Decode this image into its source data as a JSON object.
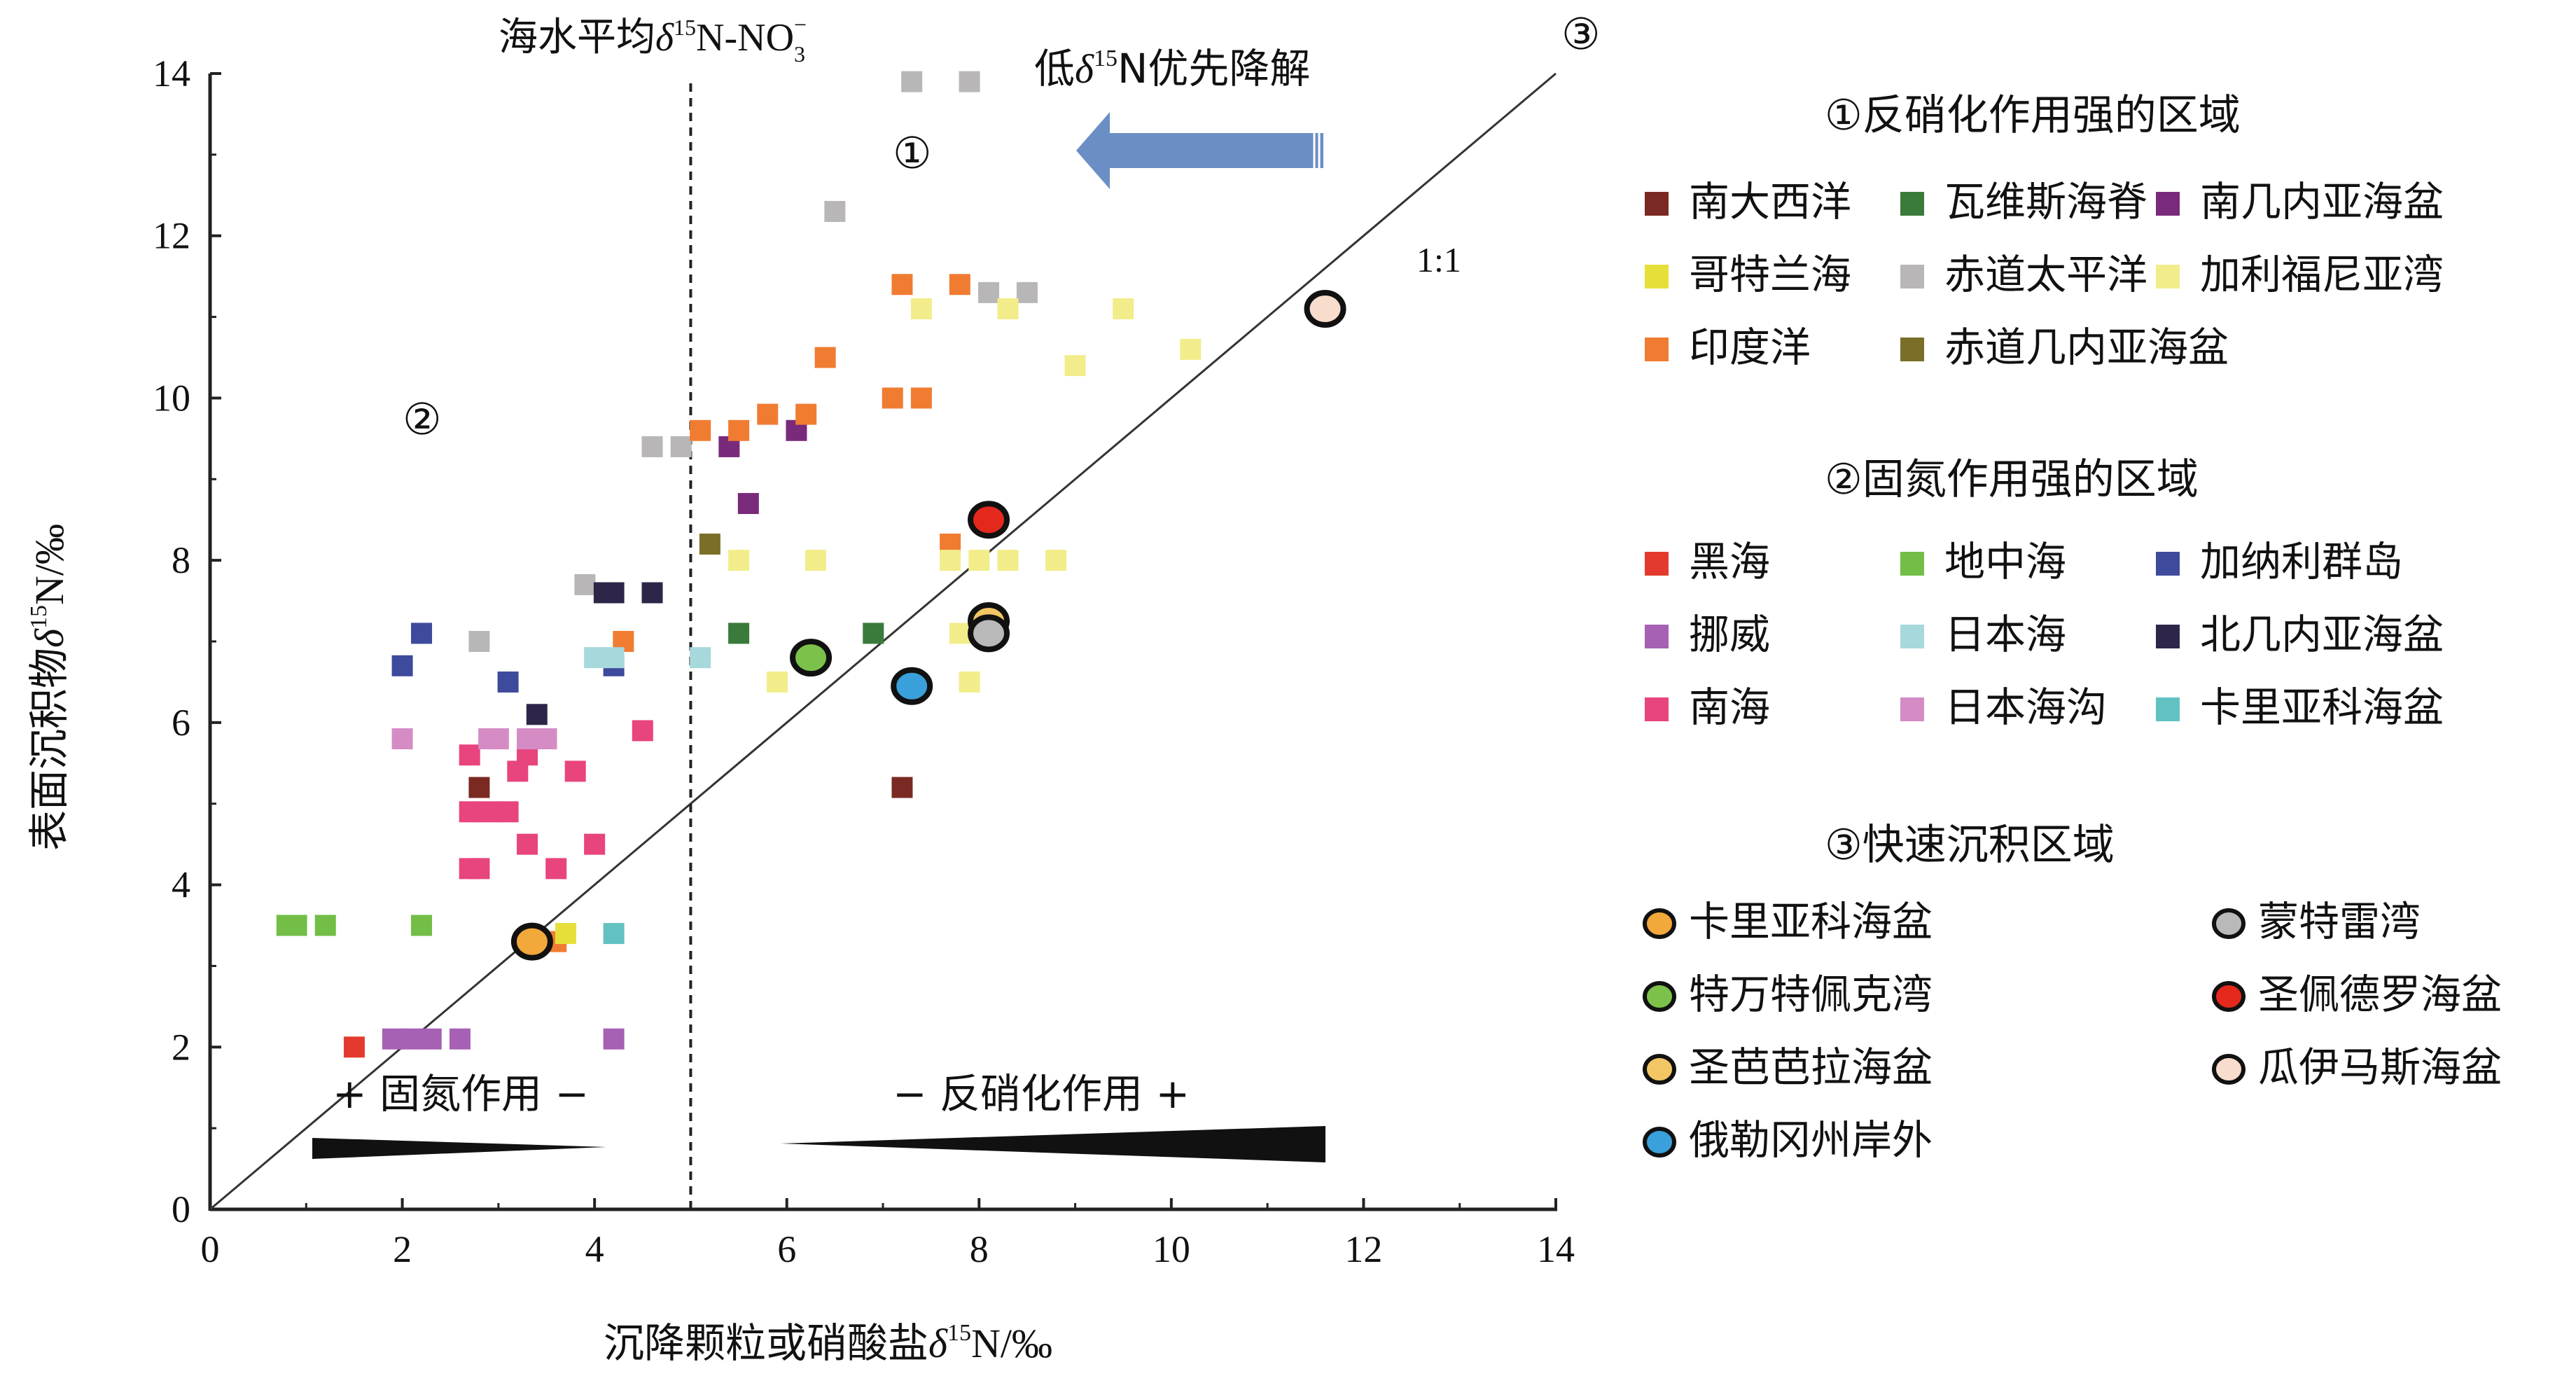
{
  "chart_data": {
    "type": "scatter",
    "xlabel_prefix": "沉降颗粒或硝酸盐",
    "xlabel_unit": "N/‰",
    "ylabel_prefix": "表面沉积物",
    "ylabel_unit": "N/‰",
    "delta": "δ",
    "sup15": "15",
    "xlim": [
      0,
      14
    ],
    "ylim": [
      0,
      14
    ],
    "x_ticks": [
      0,
      2,
      4,
      6,
      8,
      10,
      12,
      14
    ],
    "y_ticks": [
      0,
      2,
      4,
      6,
      8,
      10,
      12,
      14
    ],
    "grid": false,
    "reference_line": {
      "label": "1:1",
      "from": [
        0,
        0
      ],
      "to": [
        14,
        14
      ]
    },
    "vline": {
      "x": 5.0,
      "label_prefix": "海水平均",
      "label_suffix": "N-NO",
      "sub": "3",
      "supminus": "−"
    },
    "arrow_label_prefix": "低",
    "arrow_label_suffix": "N优先降解",
    "arrow_color": "#6b8fc4",
    "region_marks": [
      "①",
      "②",
      "③"
    ],
    "wedge_left_label": "+ 固氮作用 −",
    "wedge_right_label": "− 反硝化作用 +",
    "legend": {
      "group1_title": "①反硝化作用强的区域",
      "group1": [
        {
          "name": "南大西洋",
          "color": "#7a2a22"
        },
        {
          "name": "瓦维斯海脊",
          "color": "#3a7a3a"
        },
        {
          "name": "南几内亚海盆",
          "color": "#7a2a7a"
        },
        {
          "name": "哥特兰海",
          "color": "#e6df3a"
        },
        {
          "name": "赤道太平洋",
          "color": "#b8b6b6"
        },
        {
          "name": "加利福尼亚湾",
          "color": "#f2ed8a"
        },
        {
          "name": "印度洋",
          "color": "#f07c32"
        },
        {
          "name": "赤道几内亚海盆",
          "color": "#7a6e28"
        }
      ],
      "group2_title": "②固氮作用强的区域",
      "group2": [
        {
          "name": "黑海",
          "color": "#e43a2e"
        },
        {
          "name": "地中海",
          "color": "#72be46"
        },
        {
          "name": "加纳利群岛",
          "color": "#3e4a9c"
        },
        {
          "name": "挪威",
          "color": "#a661b4"
        },
        {
          "name": "日本海",
          "color": "#a6d8dc"
        },
        {
          "name": "北几内亚海盆",
          "color": "#2e2648"
        },
        {
          "name": "南海",
          "color": "#e8447e"
        },
        {
          "name": "日本海沟",
          "color": "#d58cc4"
        },
        {
          "name": "卡里亚科海盆",
          "color": "#62c2c2"
        }
      ],
      "group3_title": "③快速沉积区域",
      "group3": [
        {
          "name": "卡里亚科海盆",
          "color": "#f2a83a"
        },
        {
          "name": "蒙特雷湾",
          "color": "#b9b9b9"
        },
        {
          "name": "特万特佩克湾",
          "color": "#7cc24a"
        },
        {
          "name": "圣佩德罗海盆",
          "color": "#e4281c"
        },
        {
          "name": "圣芭芭拉海盆",
          "color": "#f2c664"
        },
        {
          "name": "瓜伊马斯海盆",
          "color": "#f8dccc"
        },
        {
          "name": "俄勒冈州岸外",
          "color": "#3aa0dc"
        }
      ]
    },
    "squares": [
      {
        "x": 7.2,
        "y": 5.2,
        "c": "#7a2a22"
      },
      {
        "x": 2.8,
        "y": 5.2,
        "c": "#7a2a22"
      },
      {
        "x": 5.5,
        "y": 7.1,
        "c": "#3a7a3a"
      },
      {
        "x": 6.9,
        "y": 7.1,
        "c": "#3a7a3a"
      },
      {
        "x": 5.4,
        "y": 9.4,
        "c": "#7a2a7a"
      },
      {
        "x": 5.6,
        "y": 8.7,
        "c": "#7a2a7a"
      },
      {
        "x": 6.1,
        "y": 9.6,
        "c": "#7a2a7a"
      },
      {
        "x": 7.3,
        "y": 13.9,
        "c": "#b8b6b6"
      },
      {
        "x": 7.9,
        "y": 13.9,
        "c": "#b8b6b6"
      },
      {
        "x": 6.5,
        "y": 12.3,
        "c": "#b8b6b6"
      },
      {
        "x": 8.1,
        "y": 11.3,
        "c": "#b8b6b6"
      },
      {
        "x": 8.5,
        "y": 11.3,
        "c": "#b8b6b6"
      },
      {
        "x": 4.6,
        "y": 9.4,
        "c": "#b8b6b6"
      },
      {
        "x": 4.9,
        "y": 9.4,
        "c": "#b8b6b6"
      },
      {
        "x": 3.9,
        "y": 7.7,
        "c": "#b8b6b6"
      },
      {
        "x": 2.8,
        "y": 7.0,
        "c": "#b8b6b6"
      },
      {
        "x": 7.2,
        "y": 11.4,
        "c": "#f07c32"
      },
      {
        "x": 7.8,
        "y": 11.4,
        "c": "#f07c32"
      },
      {
        "x": 6.4,
        "y": 10.5,
        "c": "#f07c32"
      },
      {
        "x": 7.1,
        "y": 10.0,
        "c": "#f07c32"
      },
      {
        "x": 7.4,
        "y": 10.0,
        "c": "#f07c32"
      },
      {
        "x": 5.8,
        "y": 9.8,
        "c": "#f07c32"
      },
      {
        "x": 6.2,
        "y": 9.8,
        "c": "#f07c32"
      },
      {
        "x": 5.1,
        "y": 9.6,
        "c": "#f07c32"
      },
      {
        "x": 5.5,
        "y": 9.6,
        "c": "#f07c32"
      },
      {
        "x": 7.7,
        "y": 8.2,
        "c": "#f07c32"
      },
      {
        "x": 4.3,
        "y": 7.0,
        "c": "#f07c32"
      },
      {
        "x": 3.6,
        "y": 3.3,
        "c": "#f07c32"
      },
      {
        "x": 7.4,
        "y": 11.1,
        "c": "#f2ed8a"
      },
      {
        "x": 8.3,
        "y": 11.1,
        "c": "#f2ed8a"
      },
      {
        "x": 9.5,
        "y": 11.1,
        "c": "#f2ed8a"
      },
      {
        "x": 10.2,
        "y": 10.6,
        "c": "#f2ed8a"
      },
      {
        "x": 9.0,
        "y": 10.4,
        "c": "#f2ed8a"
      },
      {
        "x": 5.5,
        "y": 8.0,
        "c": "#f2ed8a"
      },
      {
        "x": 6.3,
        "y": 8.0,
        "c": "#f2ed8a"
      },
      {
        "x": 7.7,
        "y": 8.0,
        "c": "#f2ed8a"
      },
      {
        "x": 8.0,
        "y": 8.0,
        "c": "#f2ed8a"
      },
      {
        "x": 8.3,
        "y": 8.0,
        "c": "#f2ed8a"
      },
      {
        "x": 8.8,
        "y": 8.0,
        "c": "#f2ed8a"
      },
      {
        "x": 7.8,
        "y": 7.1,
        "c": "#f2ed8a"
      },
      {
        "x": 5.9,
        "y": 6.5,
        "c": "#f2ed8a"
      },
      {
        "x": 7.9,
        "y": 6.5,
        "c": "#f2ed8a"
      },
      {
        "x": 3.7,
        "y": 3.4,
        "c": "#e6df3a"
      },
      {
        "x": 5.2,
        "y": 8.2,
        "c": "#7a6e28"
      },
      {
        "x": 1.5,
        "y": 2.0,
        "c": "#e43a2e"
      },
      {
        "x": 0.8,
        "y": 3.5,
        "c": "#72be46"
      },
      {
        "x": 0.9,
        "y": 3.5,
        "c": "#72be46"
      },
      {
        "x": 1.2,
        "y": 3.5,
        "c": "#72be46"
      },
      {
        "x": 2.2,
        "y": 3.5,
        "c": "#72be46"
      },
      {
        "x": 2.0,
        "y": 6.7,
        "c": "#3e4a9c"
      },
      {
        "x": 2.2,
        "y": 7.1,
        "c": "#3e4a9c"
      },
      {
        "x": 3.1,
        "y": 6.5,
        "c": "#3e4a9c"
      },
      {
        "x": 4.2,
        "y": 6.7,
        "c": "#3e4a9c"
      },
      {
        "x": 1.9,
        "y": 2.1,
        "c": "#a661b4"
      },
      {
        "x": 2.1,
        "y": 2.1,
        "c": "#a661b4"
      },
      {
        "x": 2.3,
        "y": 2.1,
        "c": "#a661b4"
      },
      {
        "x": 2.6,
        "y": 2.1,
        "c": "#a661b4"
      },
      {
        "x": 4.2,
        "y": 2.1,
        "c": "#a661b4"
      },
      {
        "x": 4.0,
        "y": 6.8,
        "c": "#a6d8dc"
      },
      {
        "x": 4.2,
        "y": 6.8,
        "c": "#a6d8dc"
      },
      {
        "x": 5.1,
        "y": 6.8,
        "c": "#a6d8dc"
      },
      {
        "x": 4.1,
        "y": 7.6,
        "c": "#2e2648"
      },
      {
        "x": 4.2,
        "y": 7.6,
        "c": "#2e2648"
      },
      {
        "x": 4.6,
        "y": 7.6,
        "c": "#2e2648"
      },
      {
        "x": 3.4,
        "y": 6.1,
        "c": "#2e2648"
      },
      {
        "x": 2.7,
        "y": 5.6,
        "c": "#e8447e"
      },
      {
        "x": 3.3,
        "y": 5.6,
        "c": "#e8447e"
      },
      {
        "x": 3.2,
        "y": 5.4,
        "c": "#e8447e"
      },
      {
        "x": 3.8,
        "y": 5.4,
        "c": "#e8447e"
      },
      {
        "x": 4.5,
        "y": 5.9,
        "c": "#e8447e"
      },
      {
        "x": 2.7,
        "y": 4.9,
        "c": "#e8447e"
      },
      {
        "x": 2.9,
        "y": 4.9,
        "c": "#e8447e"
      },
      {
        "x": 3.1,
        "y": 4.9,
        "c": "#e8447e"
      },
      {
        "x": 3.3,
        "y": 4.5,
        "c": "#e8447e"
      },
      {
        "x": 4.0,
        "y": 4.5,
        "c": "#e8447e"
      },
      {
        "x": 2.7,
        "y": 4.2,
        "c": "#e8447e"
      },
      {
        "x": 2.8,
        "y": 4.2,
        "c": "#e8447e"
      },
      {
        "x": 3.6,
        "y": 4.2,
        "c": "#e8447e"
      },
      {
        "x": 2.0,
        "y": 5.8,
        "c": "#d58cc4"
      },
      {
        "x": 2.9,
        "y": 5.8,
        "c": "#d58cc4"
      },
      {
        "x": 3.0,
        "y": 5.8,
        "c": "#d58cc4"
      },
      {
        "x": 3.3,
        "y": 5.8,
        "c": "#d58cc4"
      },
      {
        "x": 3.5,
        "y": 5.8,
        "c": "#d58cc4"
      },
      {
        "x": 4.2,
        "y": 3.4,
        "c": "#62c2c2"
      }
    ],
    "circles": [
      {
        "x": 3.35,
        "y": 3.3,
        "c": "#f2a83a"
      },
      {
        "x": 8.1,
        "y": 7.25,
        "c": "#f2c664"
      },
      {
        "x": 8.1,
        "y": 7.1,
        "c": "#b9b9b9"
      },
      {
        "x": 6.25,
        "y": 6.8,
        "c": "#7cc24a"
      },
      {
        "x": 8.1,
        "y": 8.5,
        "c": "#e4281c"
      },
      {
        "x": 11.6,
        "y": 11.1,
        "c": "#f8dccc"
      },
      {
        "x": 7.3,
        "y": 6.45,
        "c": "#3aa0dc"
      }
    ]
  }
}
